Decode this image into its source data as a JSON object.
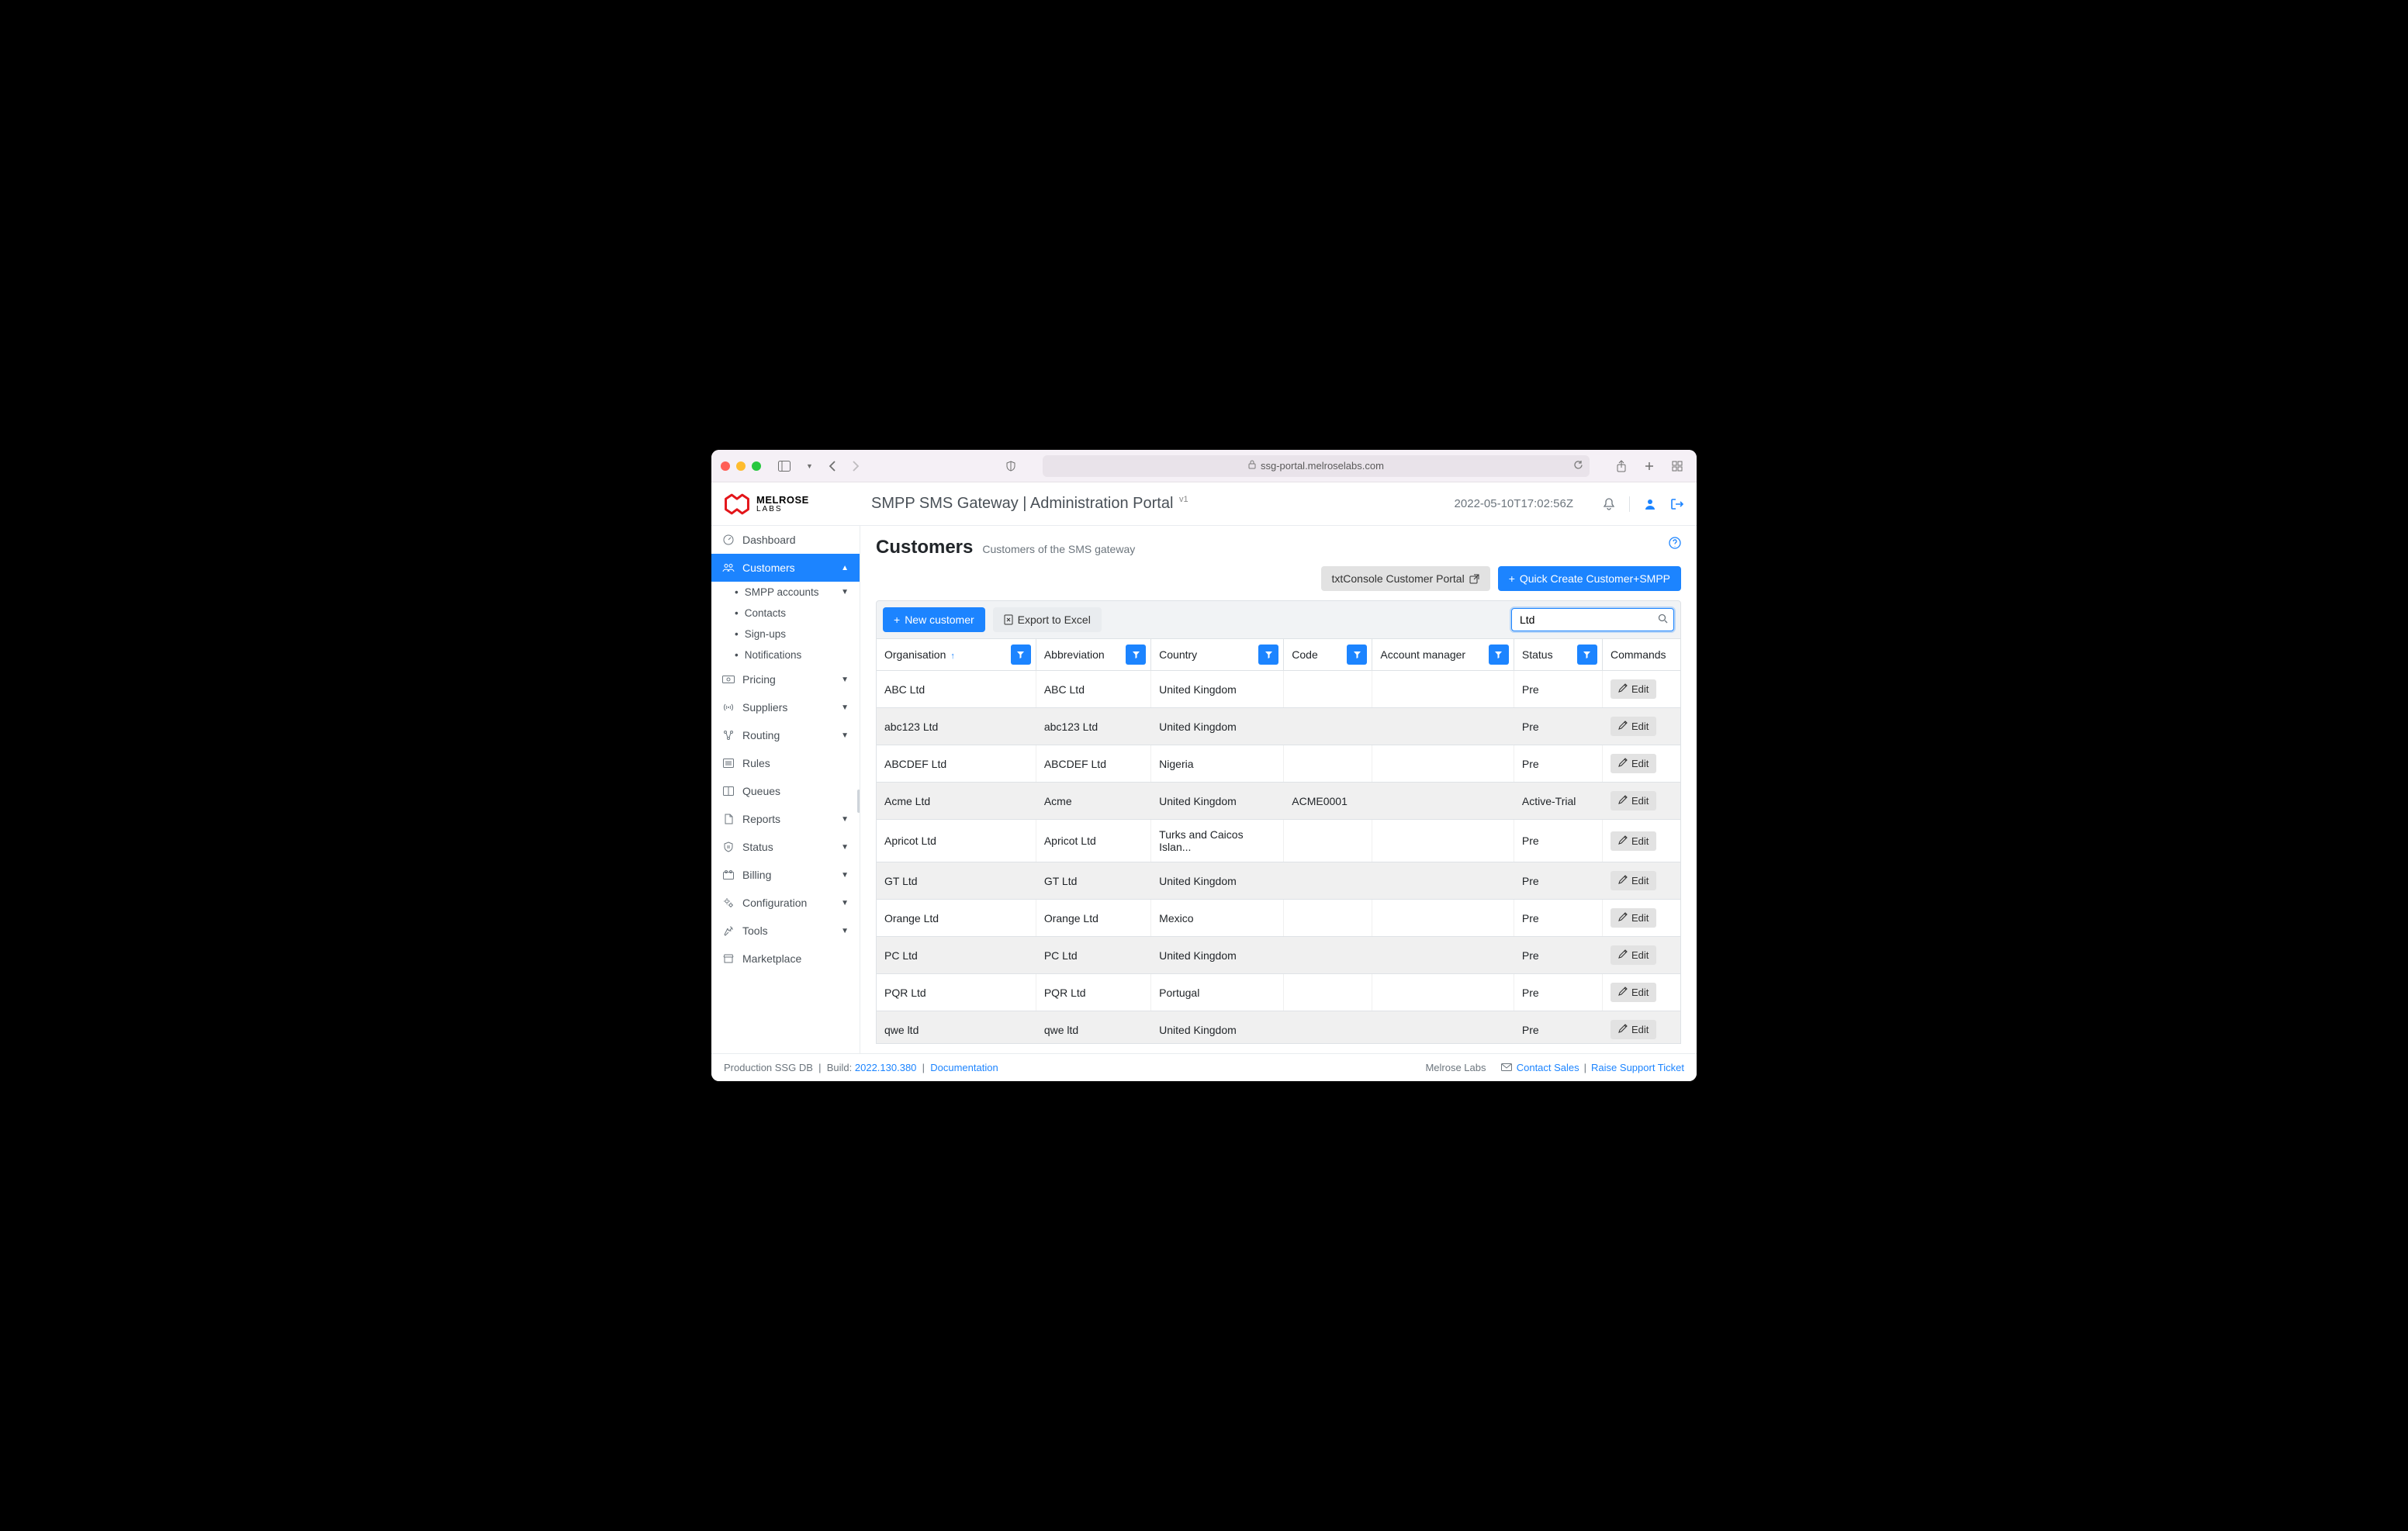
{
  "browser": {
    "url": "ssg-portal.melroselabs.com"
  },
  "brand": {
    "name": "MELROSE",
    "sub": "LABS"
  },
  "header": {
    "title": "SMPP SMS Gateway | Administration Portal",
    "version": "v1",
    "timestamp": "2022-05-10T17:02:56Z"
  },
  "sidebar": {
    "items": [
      {
        "label": "Dashboard",
        "icon": "gauge"
      },
      {
        "label": "Customers",
        "icon": "users",
        "active": true,
        "expanded": true,
        "children": [
          {
            "label": "SMPP accounts",
            "chev": true
          },
          {
            "label": "Contacts"
          },
          {
            "label": "Sign-ups"
          },
          {
            "label": "Notifications"
          }
        ]
      },
      {
        "label": "Pricing",
        "icon": "money",
        "chev": true
      },
      {
        "label": "Suppliers",
        "icon": "antenna",
        "chev": true
      },
      {
        "label": "Routing",
        "icon": "route",
        "chev": true
      },
      {
        "label": "Rules",
        "icon": "list"
      },
      {
        "label": "Queues",
        "icon": "columns"
      },
      {
        "label": "Reports",
        "icon": "file",
        "chev": true
      },
      {
        "label": "Status",
        "icon": "shield",
        "chev": true
      },
      {
        "label": "Billing",
        "icon": "billing",
        "chev": true
      },
      {
        "label": "Configuration",
        "icon": "gears",
        "chev": true
      },
      {
        "label": "Tools",
        "icon": "wrench",
        "chev": true
      },
      {
        "label": "Marketplace",
        "icon": "shop"
      }
    ]
  },
  "page": {
    "title": "Customers",
    "subtitle": "Customers of the SMS gateway",
    "portal_btn": "txtConsole Customer Portal",
    "quick_create_btn": "Quick Create Customer+SMPP",
    "new_btn": "New customer",
    "export_btn": "Export to Excel",
    "search_value": "Ltd",
    "search_placeholder": ""
  },
  "table": {
    "columns": [
      "Organisation",
      "Abbreviation",
      "Country",
      "Code",
      "Account manager",
      "Status",
      "Commands"
    ],
    "sorted_col": 0,
    "sort_dir": "asc",
    "filterable": [
      true,
      true,
      true,
      true,
      true,
      true,
      false
    ],
    "edit_label": "Edit",
    "rows": [
      {
        "org": "ABC Ltd",
        "abbr": "ABC Ltd",
        "country": "United Kingdom",
        "code": "",
        "mgr": "",
        "status": "Pre"
      },
      {
        "org": "abc123 Ltd",
        "abbr": "abc123 Ltd",
        "country": "United Kingdom",
        "code": "",
        "mgr": "",
        "status": "Pre"
      },
      {
        "org": "ABCDEF Ltd",
        "abbr": "ABCDEF Ltd",
        "country": "Nigeria",
        "code": "",
        "mgr": "",
        "status": "Pre"
      },
      {
        "org": "Acme Ltd",
        "abbr": "Acme",
        "country": "United Kingdom",
        "code": "ACME0001",
        "mgr": "",
        "status": "Active-Trial"
      },
      {
        "org": "Apricot Ltd",
        "abbr": "Apricot Ltd",
        "country": "Turks and Caicos Islan...",
        "code": "",
        "mgr": "",
        "status": "Pre"
      },
      {
        "org": "GT Ltd",
        "abbr": "GT Ltd",
        "country": "United Kingdom",
        "code": "",
        "mgr": "",
        "status": "Pre"
      },
      {
        "org": "Orange Ltd",
        "abbr": "Orange Ltd",
        "country": "Mexico",
        "code": "",
        "mgr": "",
        "status": "Pre"
      },
      {
        "org": "PC Ltd",
        "abbr": "PC Ltd",
        "country": "United Kingdom",
        "code": "",
        "mgr": "",
        "status": "Pre"
      },
      {
        "org": "PQR Ltd",
        "abbr": "PQR Ltd",
        "country": "Portugal",
        "code": "",
        "mgr": "",
        "status": "Pre"
      },
      {
        "org": "qwe ltd",
        "abbr": "qwe ltd",
        "country": "United Kingdom",
        "code": "",
        "mgr": "",
        "status": "Pre"
      }
    ]
  },
  "footer": {
    "db": "Production SSG DB",
    "build_label": "Build:",
    "build": "2022.130.380",
    "doc": "Documentation",
    "company": "Melrose Labs",
    "contact": "Contact Sales",
    "support": "Raise Support Ticket"
  },
  "colors": {
    "primary": "#1c84ff",
    "brand_red": "#e3151a",
    "border": "#dee2e6",
    "muted": "#6c757d"
  }
}
